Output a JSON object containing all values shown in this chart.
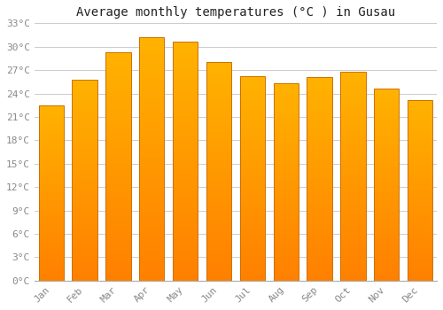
{
  "title": "Average monthly temperatures (°C ) in Gusau",
  "months": [
    "Jan",
    "Feb",
    "Mar",
    "Apr",
    "May",
    "Jun",
    "Jul",
    "Aug",
    "Sep",
    "Oct",
    "Nov",
    "Dec"
  ],
  "values": [
    22.5,
    25.8,
    29.3,
    31.2,
    30.7,
    28.0,
    26.2,
    25.3,
    26.1,
    26.8,
    24.6,
    23.1
  ],
  "bar_color_top": "#FFB300",
  "bar_color_bottom": "#FF8C00",
  "bar_color_edge": "#CC7000",
  "ylim": [
    0,
    33
  ],
  "ytick_step": 3,
  "background_color": "#FFFFFF",
  "plot_bg_color": "#FFFFFF",
  "grid_color": "#CCCCCC",
  "title_fontsize": 10,
  "tick_fontsize": 8,
  "tick_color": "#888888",
  "font_family": "monospace"
}
